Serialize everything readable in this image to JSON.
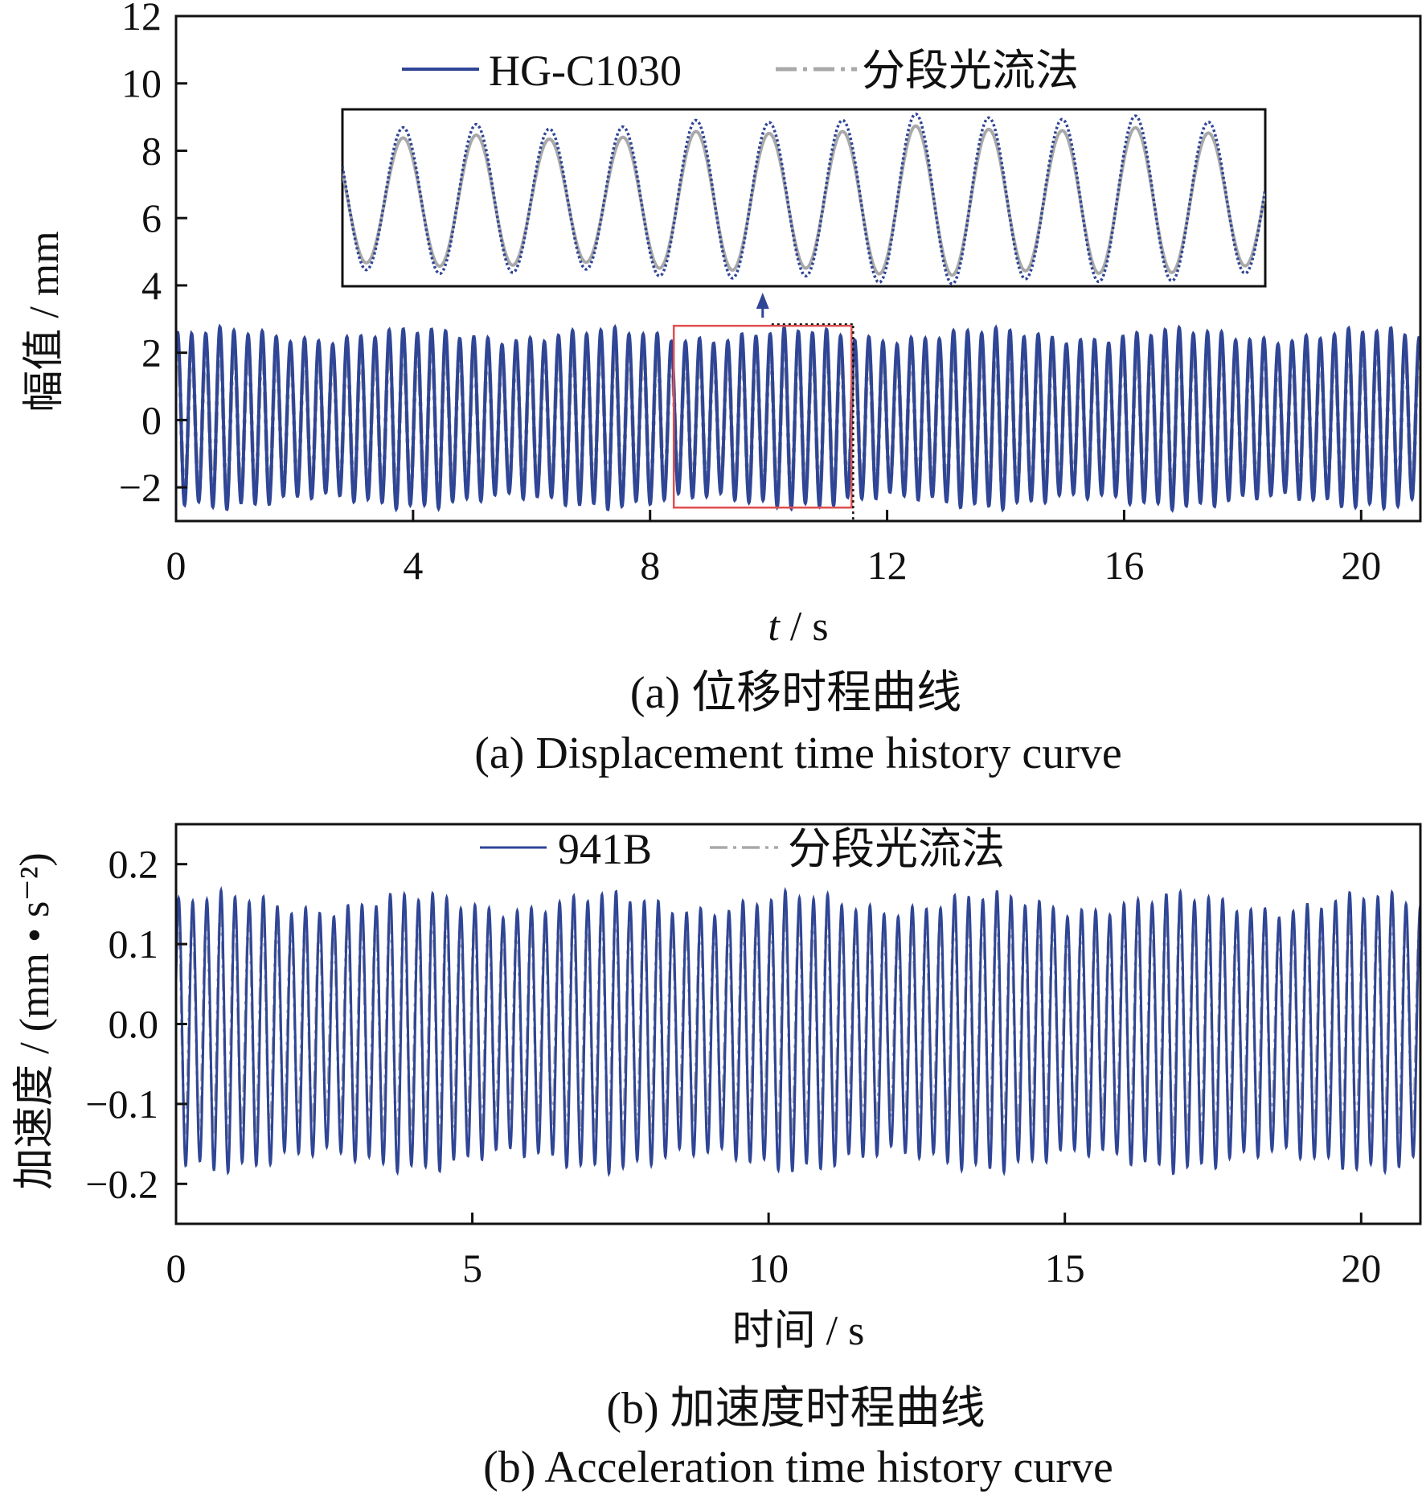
{
  "colors": {
    "measured": "#2f4596",
    "optical_flow": "#a9a9a9",
    "zoom_box": "#e05050",
    "frame": "#111111"
  },
  "chart_data": [
    {
      "type": "line",
      "xlabel_italic": "t",
      "xlabel_rest": " / s",
      "ylabel": "幅值 / mm",
      "xlim": [
        0,
        21
      ],
      "ylim": [
        -3,
        12
      ],
      "xticks": [
        0,
        4,
        8,
        12,
        16,
        20
      ],
      "xtick_labels": [
        "0",
        "4",
        "8",
        "12",
        "16",
        "20"
      ],
      "yticks": [
        -2,
        0,
        2,
        4,
        6,
        8,
        10,
        12
      ],
      "ytick_labels": [
        "−2",
        "0",
        "2",
        "4",
        "6",
        "8",
        "10",
        "12"
      ],
      "legend_position": "top-center",
      "series": [
        {
          "name": "HG-C1030",
          "style": "solid",
          "frequency_hz": 4.2,
          "amplitude": 2.45,
          "offset": 0.05,
          "phase": 0.9,
          "x_range": [
            0,
            21
          ]
        },
        {
          "name": "分段光流法",
          "style": "dash-dot",
          "frequency_hz": 4.2,
          "amplitude": 2.15,
          "offset": 0.0,
          "phase": 0.9,
          "x_range": [
            0,
            21
          ]
        }
      ],
      "zoom_window": {
        "x_range": [
          8.4,
          11.4
        ],
        "y_range": [
          -2.6,
          2.8
        ]
      },
      "inset_range": {
        "x_range": [
          8.4,
          11.4
        ]
      },
      "caption_zh": "(a) 位移时程曲线",
      "caption_en": "(a) Displacement time history curve"
    },
    {
      "type": "line",
      "xlabel": "时间 / s",
      "ylabel": "加速度 / (mm • s⁻²)",
      "xlim": [
        0,
        21
      ],
      "ylim": [
        -0.25,
        0.25
      ],
      "xticks": [
        0,
        5,
        10,
        15,
        20
      ],
      "xtick_labels": [
        "0",
        "5",
        "10",
        "15",
        "20"
      ],
      "yticks": [
        -0.2,
        -0.1,
        0.0,
        0.1,
        0.2
      ],
      "ytick_labels": [
        "−0.2",
        "−0.1",
        "0.0",
        "0.1",
        "0.2"
      ],
      "legend_position": "top-center",
      "series": [
        {
          "name": "941B",
          "style": "solid",
          "frequency_hz": 4.2,
          "amplitude": 0.16,
          "offset": -0.01,
          "phase": 0.4,
          "x_range": [
            0,
            21
          ]
        },
        {
          "name": "分段光流法",
          "style": "dash-dot",
          "frequency_hz": 4.2,
          "amplitude": 0.13,
          "offset": 0.0,
          "phase": 0.6,
          "x_range": [
            0,
            21
          ]
        }
      ],
      "caption_zh": "(b) 加速度时程曲线",
      "caption_en": "(b) Acceleration time history curve"
    }
  ]
}
